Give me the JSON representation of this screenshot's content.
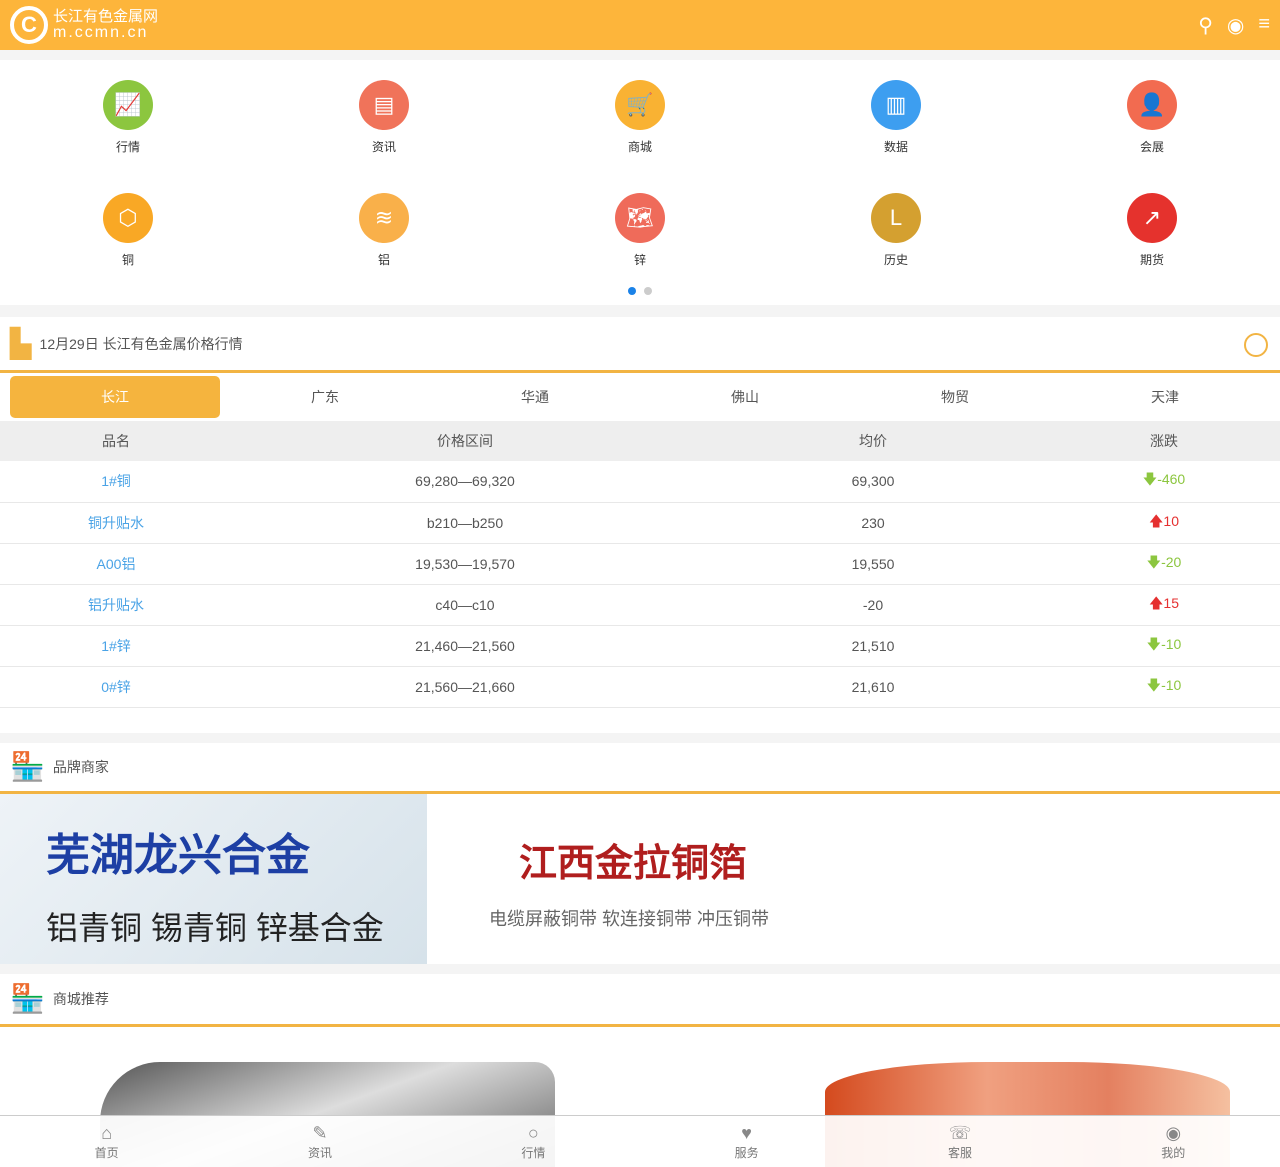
{
  "header": {
    "logo_letter": "C",
    "site_name": "长江有色金属网",
    "site_domain": "m.ccmn.cn",
    "icons": [
      "search-icon",
      "user-icon",
      "menu-icon"
    ]
  },
  "grid": [
    {
      "label": "行情",
      "icon": "line-chart-icon",
      "color": "#8cc63f",
      "glyph": "📈"
    },
    {
      "label": "资讯",
      "icon": "book-icon",
      "color": "#f0735a",
      "glyph": "▤"
    },
    {
      "label": "商城",
      "icon": "cart-icon",
      "color": "#f9b233",
      "glyph": "🛒"
    },
    {
      "label": "数据",
      "icon": "bar-chart-icon",
      "color": "#3d9ef0",
      "glyph": "▥"
    },
    {
      "label": "会展",
      "icon": "people-icon",
      "color": "#f26b50",
      "glyph": "👤"
    },
    {
      "label": "铜",
      "icon": "hexagon-icon",
      "color": "#f9a825",
      "glyph": "⬡"
    },
    {
      "label": "铝",
      "icon": "layers-icon",
      "color": "#f9b04a",
      "glyph": "≋"
    },
    {
      "label": "锌",
      "icon": "world-map-icon",
      "color": "#ef6b5a",
      "glyph": "🗺"
    },
    {
      "label": "历史",
      "icon": "history-icon",
      "color": "#d4a030",
      "glyph": "L"
    },
    {
      "label": "期货",
      "icon": "trend-up-icon",
      "color": "#e5322d",
      "glyph": "↗"
    }
  ],
  "prices": {
    "title": "12月29日 长江有色金属价格行情",
    "tabs": [
      "长江",
      "广东",
      "华通",
      "佛山",
      "物贸",
      "天津"
    ],
    "active_tab": "长江",
    "columns": [
      "品名",
      "价格区间",
      "均价",
      "涨跌"
    ],
    "rows": [
      {
        "name": "1#铜",
        "range": "69,280—69,320",
        "avg": "69,300",
        "change": "-460",
        "dir": "down"
      },
      {
        "name": "铜升贴水",
        "range": "b210—b250",
        "avg": "230",
        "change": "10",
        "dir": "up"
      },
      {
        "name": "A00铝",
        "range": "19,530—19,570",
        "avg": "19,550",
        "change": "-20",
        "dir": "down"
      },
      {
        "name": "铝升贴水",
        "range": "c40—c10",
        "avg": "-20",
        "change": "15",
        "dir": "up"
      },
      {
        "name": "1#锌",
        "range": "21,460—21,560",
        "avg": "21,510",
        "change": "-10",
        "dir": "down"
      },
      {
        "name": "0#锌",
        "range": "21,560—21,660",
        "avg": "21,610",
        "change": "-10",
        "dir": "down"
      }
    ]
  },
  "brands": {
    "title": "品牌商家",
    "items": [
      {
        "name": "芜湖龙兴合金",
        "slogan": "铝青铜 锡青铜 锌基合金"
      },
      {
        "name": "江西金拉铜箔",
        "slogan": "电缆屏蔽铜带 软连接铜带 冲压铜带"
      }
    ]
  },
  "mall": {
    "title": "商城推荐"
  },
  "nav": [
    {
      "label": "首页",
      "icon": "home-icon",
      "glyph": "⌂"
    },
    {
      "label": "资讯",
      "icon": "edit-icon",
      "glyph": "✎"
    },
    {
      "label": "行情",
      "icon": "search-icon",
      "glyph": "○"
    },
    {
      "label": "服务",
      "icon": "heart-icon",
      "glyph": "♥"
    },
    {
      "label": "客服",
      "icon": "phone-icon",
      "glyph": "☏"
    },
    {
      "label": "我的",
      "icon": "user-icon",
      "glyph": "◉"
    }
  ]
}
